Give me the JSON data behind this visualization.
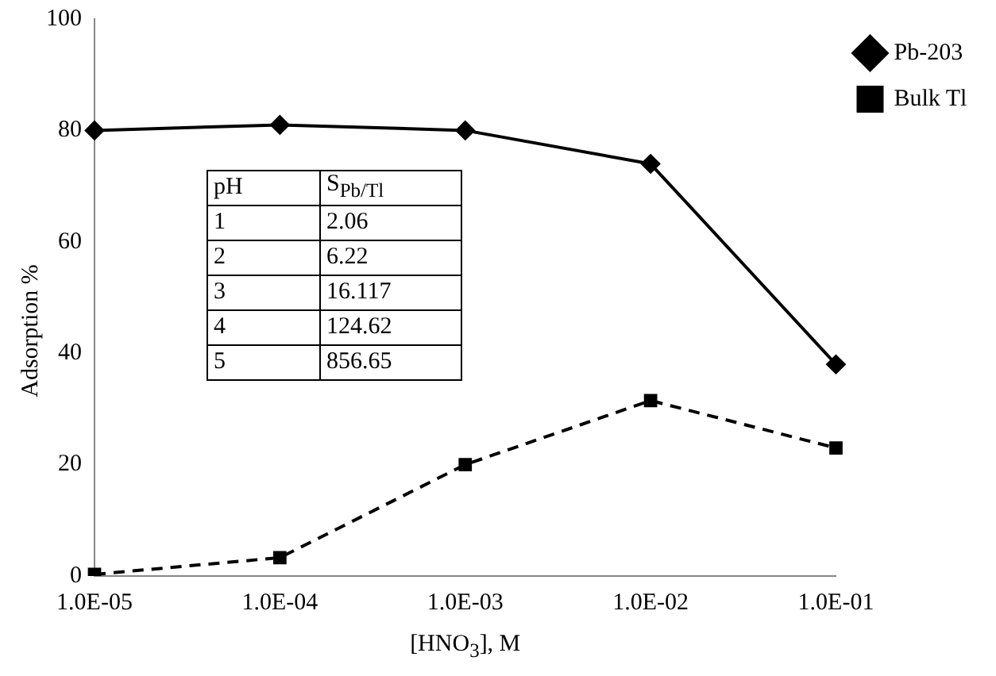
{
  "chart_data": {
    "type": "line",
    "xlabel": "[HNO$_{3}$], M",
    "ylabel": "Adsorption %",
    "categories": [
      "1.0E-05",
      "1.0E-04",
      "1.0E-03",
      "1.0E-02",
      "1.0E-01"
    ],
    "series": [
      {
        "name": "Pb-203",
        "color": "#000000",
        "marker": "diamond",
        "line_style": "solid",
        "values": [
          80,
          81,
          80,
          74,
          38
        ]
      },
      {
        "name": "Bulk Tl",
        "color": "#000000",
        "marker": "square",
        "line_style": "dashed",
        "values": [
          0.3,
          3.3,
          20,
          31.5,
          23
        ]
      }
    ],
    "ylim": [
      0,
      100
    ],
    "yticks": [
      0,
      20,
      40,
      60,
      80,
      100
    ],
    "grid": false,
    "legend": "right",
    "annotations": [
      "pH",
      "S$_{Pb/Tl}$",
      "1",
      "2.06",
      "2",
      "6.22",
      "3",
      "16.117",
      "4",
      "124.62",
      "5",
      "856.65"
    ]
  }
}
